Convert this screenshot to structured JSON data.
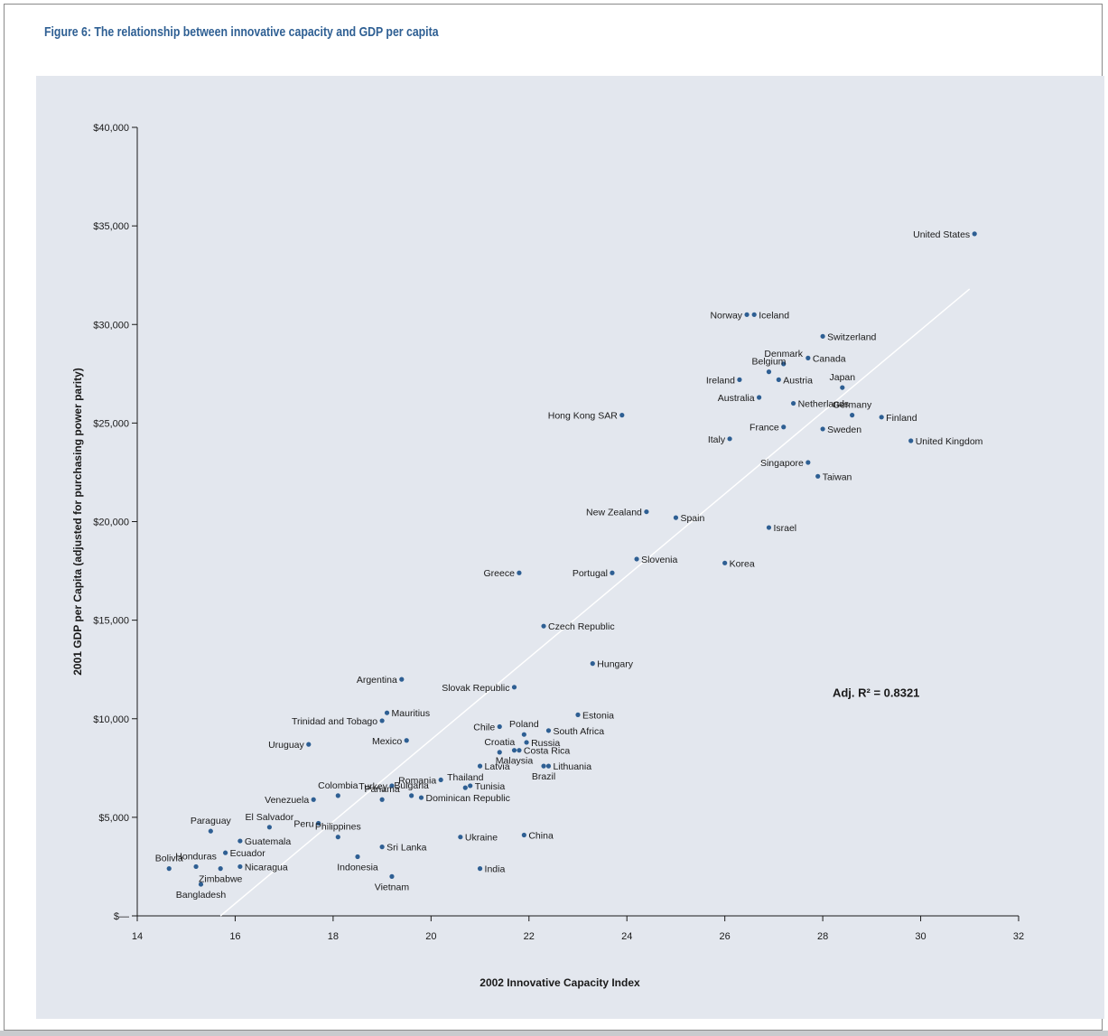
{
  "figure": {
    "title": "Figure 6: The relationship between innovative capacity and GDP per capita"
  },
  "colors": {
    "point": "#2e5f93",
    "panel": "#e3e7ee",
    "title": "#2e5f93",
    "trend": "#ffffff"
  },
  "chart_data": {
    "type": "scatter",
    "title": "",
    "xlabel": "2002 Innovative Capacity Index",
    "ylabel": "2001 GDP per Capita (adjusted for purchasing power parity)",
    "xlim": [
      14,
      32
    ],
    "ylim": [
      0,
      40000
    ],
    "x_ticks": [
      14,
      16,
      18,
      20,
      22,
      24,
      26,
      28,
      30,
      32
    ],
    "x_tick_labels": [
      "14",
      "16",
      "18",
      "20",
      "22",
      "24",
      "26",
      "28",
      "30",
      "32"
    ],
    "y_ticks": [
      0,
      5000,
      10000,
      15000,
      20000,
      25000,
      30000,
      35000,
      40000
    ],
    "y_tick_labels": [
      "$—",
      "$5,000",
      "$10,000",
      "$15,000",
      "$20,000",
      "$25,000",
      "$30,000",
      "$35,000",
      "$40,000"
    ],
    "grid": false,
    "trendline": {
      "x": [
        15.7,
        31.0
      ],
      "y": [
        0,
        31800
      ]
    },
    "annotation": "Adj. R² = 0.8321",
    "points": [
      {
        "label": "United States",
        "x": 31.1,
        "y": 34600,
        "side": "left"
      },
      {
        "label": "Norway",
        "x": 26.45,
        "y": 30500,
        "side": "left"
      },
      {
        "label": "Iceland",
        "x": 26.6,
        "y": 30500,
        "side": "right"
      },
      {
        "label": "Switzerland",
        "x": 28.0,
        "y": 29400,
        "side": "right"
      },
      {
        "label": "Denmark",
        "x": 27.2,
        "y": 28000,
        "side": "up"
      },
      {
        "label": "Canada",
        "x": 27.7,
        "y": 28300,
        "side": "right"
      },
      {
        "label": "Belgium",
        "x": 26.9,
        "y": 27600,
        "side": "up"
      },
      {
        "label": "Ireland",
        "x": 26.3,
        "y": 27200,
        "side": "left"
      },
      {
        "label": "Austria",
        "x": 27.1,
        "y": 27200,
        "side": "right"
      },
      {
        "label": "Japan",
        "x": 28.4,
        "y": 26800,
        "side": "up"
      },
      {
        "label": "Australia",
        "x": 26.7,
        "y": 26300,
        "side": "left"
      },
      {
        "label": "Netherlands",
        "x": 27.4,
        "y": 26000,
        "side": "right"
      },
      {
        "label": "Germany",
        "x": 28.6,
        "y": 25400,
        "side": "up"
      },
      {
        "label": "Finland",
        "x": 29.2,
        "y": 25300,
        "side": "right"
      },
      {
        "label": "France",
        "x": 27.2,
        "y": 24800,
        "side": "left"
      },
      {
        "label": "Sweden",
        "x": 28.0,
        "y": 24700,
        "side": "right"
      },
      {
        "label": "Hong Kong SAR",
        "x": 23.9,
        "y": 25400,
        "side": "left"
      },
      {
        "label": "Italy",
        "x": 26.1,
        "y": 24200,
        "side": "left"
      },
      {
        "label": "United Kingdom",
        "x": 29.8,
        "y": 24100,
        "side": "right"
      },
      {
        "label": "Singapore",
        "x": 27.7,
        "y": 23000,
        "side": "left"
      },
      {
        "label": "Taiwan",
        "x": 27.9,
        "y": 22300,
        "side": "right"
      },
      {
        "label": "New Zealand",
        "x": 24.4,
        "y": 20500,
        "side": "left"
      },
      {
        "label": "Spain",
        "x": 25.0,
        "y": 20200,
        "side": "right"
      },
      {
        "label": "Israel",
        "x": 26.9,
        "y": 19700,
        "side": "right"
      },
      {
        "label": "Slovenia",
        "x": 24.2,
        "y": 18100,
        "side": "right"
      },
      {
        "label": "Korea",
        "x": 26.0,
        "y": 17900,
        "side": "right"
      },
      {
        "label": "Greece",
        "x": 21.8,
        "y": 17400,
        "side": "left"
      },
      {
        "label": "Portugal",
        "x": 23.7,
        "y": 17400,
        "side": "left"
      },
      {
        "label": "Czech Republic",
        "x": 22.3,
        "y": 14700,
        "side": "right"
      },
      {
        "label": "Hungary",
        "x": 23.3,
        "y": 12800,
        "side": "right"
      },
      {
        "label": "Argentina",
        "x": 19.4,
        "y": 12000,
        "side": "left"
      },
      {
        "label": "Slovak Republic",
        "x": 21.7,
        "y": 11600,
        "side": "left"
      },
      {
        "label": "Estonia",
        "x": 23.0,
        "y": 10200,
        "side": "right"
      },
      {
        "label": "Mauritius",
        "x": 19.1,
        "y": 10300,
        "side": "right"
      },
      {
        "label": "Trinidad and Tobago",
        "x": 19.0,
        "y": 9900,
        "side": "left"
      },
      {
        "label": "Poland",
        "x": 21.9,
        "y": 9200,
        "side": "up"
      },
      {
        "label": "Chile",
        "x": 21.4,
        "y": 9600,
        "side": "left"
      },
      {
        "label": "South Africa",
        "x": 22.4,
        "y": 9400,
        "side": "right"
      },
      {
        "label": "Mexico",
        "x": 19.5,
        "y": 8900,
        "side": "left"
      },
      {
        "label": "Uruguay",
        "x": 17.5,
        "y": 8700,
        "side": "left"
      },
      {
        "label": "Russia",
        "x": 21.95,
        "y": 8800,
        "side": "right"
      },
      {
        "label": "Croatia",
        "x": 21.4,
        "y": 8300,
        "side": "up"
      },
      {
        "label": "Thailand",
        "x": 20.7,
        "y": 6500,
        "side": "up"
      },
      {
        "label": "Costa Rica",
        "x": 21.8,
        "y": 8400,
        "side": "right"
      },
      {
        "label": "Latvia",
        "x": 21.0,
        "y": 7600,
        "side": "right"
      },
      {
        "label": "Lithuania",
        "x": 22.4,
        "y": 7600,
        "side": "right"
      },
      {
        "label": "Bulgaria",
        "x": 19.6,
        "y": 6100,
        "side": "up"
      },
      {
        "label": "Romania",
        "x": 20.2,
        "y": 6900,
        "side": "left"
      },
      {
        "label": "Tunisia",
        "x": 20.8,
        "y": 6600,
        "side": "right"
      },
      {
        "label": "Brazil",
        "x": 22.3,
        "y": 7600,
        "side": "down"
      },
      {
        "label": "Colombia",
        "x": 18.1,
        "y": 6100,
        "side": "up"
      },
      {
        "label": "Turkey",
        "x": 19.2,
        "y": 6600,
        "side": "left"
      },
      {
        "label": "Dominican Republic",
        "x": 19.8,
        "y": 6000,
        "side": "right"
      },
      {
        "label": "Malaysia",
        "x": 21.7,
        "y": 8400,
        "side": "down"
      },
      {
        "label": "Venezuela",
        "x": 17.6,
        "y": 5900,
        "side": "left"
      },
      {
        "label": "Panama",
        "x": 19.0,
        "y": 5900,
        "side": "up"
      },
      {
        "label": "Paraguay",
        "x": 15.5,
        "y": 4300,
        "side": "up"
      },
      {
        "label": "El Salvador",
        "x": 16.7,
        "y": 4500,
        "side": "up"
      },
      {
        "label": "Peru",
        "x": 17.7,
        "y": 4700,
        "side": "left"
      },
      {
        "label": "Philippines",
        "x": 18.1,
        "y": 4000,
        "side": "up"
      },
      {
        "label": "Ukraine",
        "x": 20.6,
        "y": 4000,
        "side": "right"
      },
      {
        "label": "China",
        "x": 21.9,
        "y": 4100,
        "side": "right"
      },
      {
        "label": "Honduras",
        "x": 15.2,
        "y": 2500,
        "side": "up"
      },
      {
        "label": "Guatemala",
        "x": 16.1,
        "y": 3800,
        "side": "right"
      },
      {
        "label": "Sri Lanka",
        "x": 19.0,
        "y": 3500,
        "side": "right"
      },
      {
        "label": "Ecuador",
        "x": 15.8,
        "y": 3200,
        "side": "right"
      },
      {
        "label": "Bolivia",
        "x": 14.65,
        "y": 2400,
        "side": "up"
      },
      {
        "label": "Indonesia",
        "x": 18.5,
        "y": 3000,
        "side": "down"
      },
      {
        "label": "Nicaragua",
        "x": 16.1,
        "y": 2500,
        "side": "right"
      },
      {
        "label": "Zimbabwe",
        "x": 15.7,
        "y": 2400,
        "side": "down"
      },
      {
        "label": "India",
        "x": 21.0,
        "y": 2400,
        "side": "right"
      },
      {
        "label": "Vietnam",
        "x": 19.2,
        "y": 2000,
        "side": "down"
      },
      {
        "label": "Bangladesh",
        "x": 15.3,
        "y": 1600,
        "side": "down"
      }
    ]
  }
}
